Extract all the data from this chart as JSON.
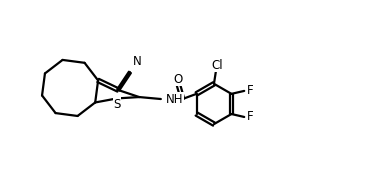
{
  "bg_color": "#ffffff",
  "line_width": 1.6,
  "font_size": 8.5,
  "figsize": [
    3.9,
    1.7
  ],
  "dpi": 100,
  "xlim": [
    0,
    3.9
  ],
  "ylim": [
    0,
    1.7
  ]
}
